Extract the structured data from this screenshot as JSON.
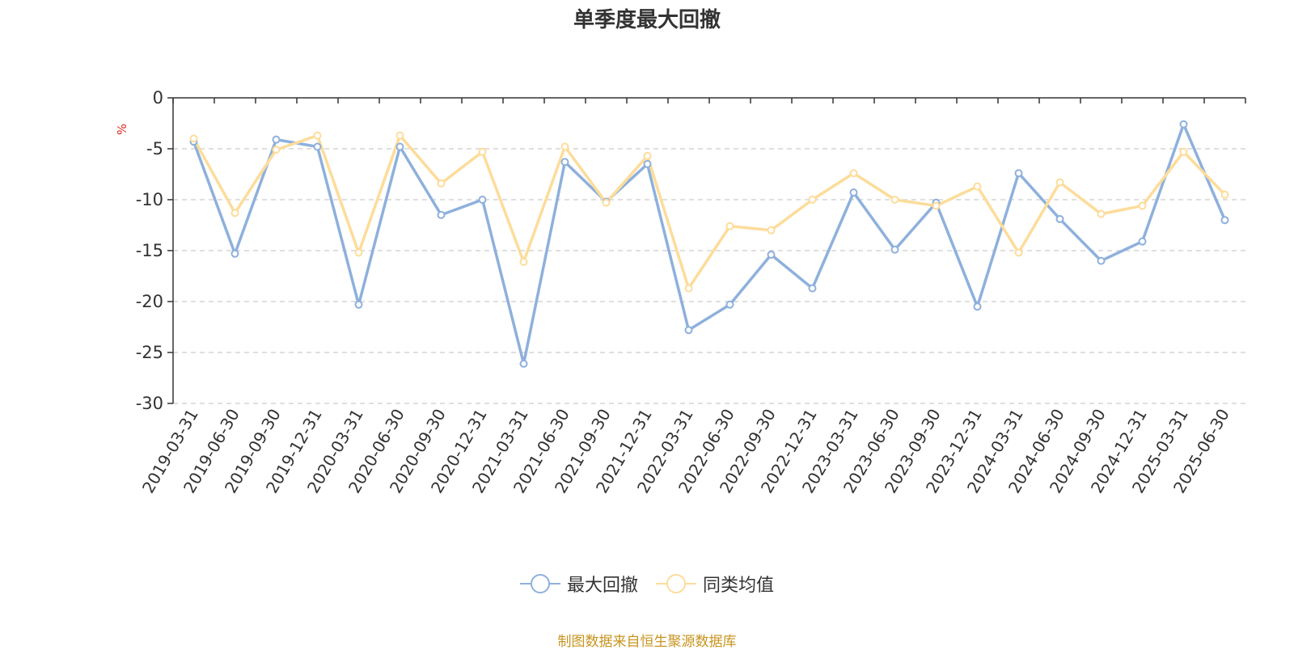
{
  "chart_data": {
    "type": "line",
    "title": "单季度最大回撤",
    "ylabel": "%",
    "ylim": [
      -30,
      0
    ],
    "yticks": [
      0,
      -5,
      -10,
      -15,
      -20,
      -25,
      -30
    ],
    "grid": true,
    "legend_position": "bottom",
    "categories": [
      "2019-03-31",
      "2019-06-30",
      "2019-09-30",
      "2019-12-31",
      "2020-03-31",
      "2020-06-30",
      "2020-09-30",
      "2020-12-31",
      "2021-03-31",
      "2021-06-30",
      "2021-09-30",
      "2021-12-31",
      "2022-03-31",
      "2022-06-30",
      "2022-09-30",
      "2022-12-31",
      "2023-03-31",
      "2023-06-30",
      "2023-09-30",
      "2023-12-31",
      "2024-03-31",
      "2024-06-30",
      "2024-09-30",
      "2024-12-31",
      "2025-03-31",
      "2025-06-30"
    ],
    "series": [
      {
        "name": "最大回撤",
        "color": "#8eb0dc",
        "values": [
          -4.3,
          -15.3,
          -4.1,
          -4.8,
          -20.3,
          -4.8,
          -11.5,
          -10.0,
          -26.1,
          -6.3,
          -10.2,
          -6.5,
          -22.8,
          -20.3,
          -15.4,
          -18.7,
          -9.3,
          -14.9,
          -10.3,
          -20.5,
          -7.4,
          -11.9,
          -16.0,
          -14.1,
          -2.6,
          -12.0
        ]
      },
      {
        "name": "同类均值",
        "color": "#fddc9a",
        "values": [
          -4.0,
          -11.3,
          -5.1,
          -3.7,
          -15.2,
          -3.7,
          -8.4,
          -5.3,
          -16.1,
          -4.8,
          -10.3,
          -5.7,
          -18.7,
          -12.6,
          -13.0,
          -10.0,
          -7.4,
          -10.0,
          -10.6,
          -8.7,
          -15.2,
          -8.3,
          -11.4,
          -10.6,
          -5.3,
          -9.5
        ]
      }
    ]
  },
  "source_text": "制图数据来自恒生聚源数据库"
}
